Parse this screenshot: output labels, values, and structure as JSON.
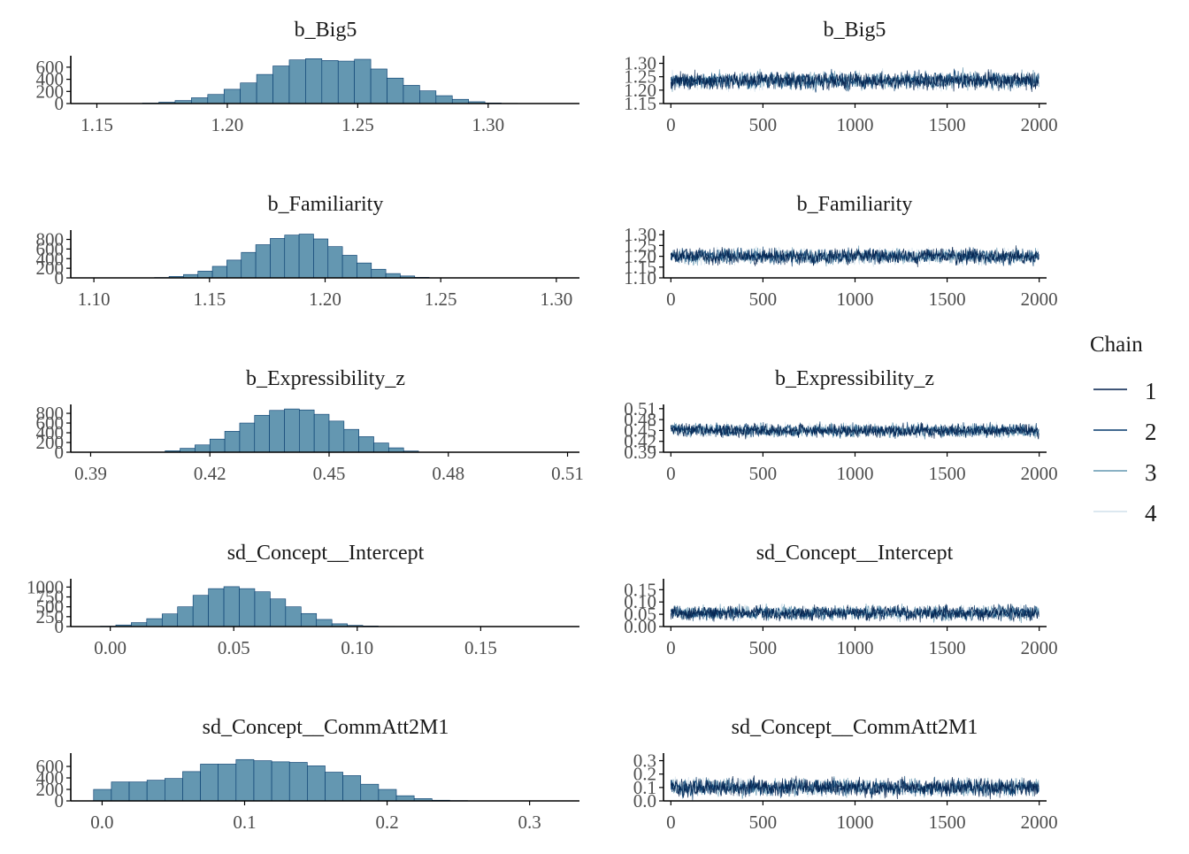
{
  "legend": {
    "title": "Chain",
    "chains": [
      {
        "label": "1",
        "color": "#011f4b"
      },
      {
        "label": "2",
        "color": "#03396c"
      },
      {
        "label": "3",
        "color": "#6497b1"
      },
      {
        "label": "4",
        "color": "#d1e1ec"
      }
    ]
  },
  "colors": {
    "hist_fill": "#6497b1",
    "hist_stroke": "#03396c",
    "axis": "#000000"
  },
  "chart_data": [
    {
      "type": "bar",
      "param": "b_Big5",
      "title": "b_Big5",
      "xlim": [
        1.14,
        1.335
      ],
      "ylim": [
        0,
        730
      ],
      "xticks": [
        {
          "v": 1.15,
          "label": "1.15"
        },
        {
          "v": 1.2,
          "label": "1.20"
        },
        {
          "v": 1.25,
          "label": "1.25"
        },
        {
          "v": 1.3,
          "label": "1.30"
        }
      ],
      "yticks": [
        {
          "v": 0,
          "label": "0"
        },
        {
          "v": 200,
          "label": "200"
        },
        {
          "v": 400,
          "label": "400"
        },
        {
          "v": 600,
          "label": "600"
        }
      ],
      "bin_start": 1.155,
      "bin_width": 0.00625,
      "counts": [
        1,
        3,
        8,
        22,
        50,
        95,
        150,
        235,
        340,
        480,
        620,
        720,
        740,
        710,
        700,
        730,
        570,
        420,
        300,
        210,
        130,
        70,
        30,
        10,
        4,
        1
      ]
    },
    {
      "type": "line",
      "param": "b_Big5",
      "title": "b_Big5",
      "xlim": [
        -40,
        2040
      ],
      "ylim": [
        1.15,
        1.315
      ],
      "xticks": [
        {
          "v": 0,
          "label": "0"
        },
        {
          "v": 500,
          "label": "500"
        },
        {
          "v": 1000,
          "label": "1000"
        },
        {
          "v": 1500,
          "label": "1500"
        },
        {
          "v": 2000,
          "label": "2000"
        }
      ],
      "yticks": [
        {
          "v": 1.15,
          "label": "1.15"
        },
        {
          "v": 1.2,
          "label": "1.20"
        },
        {
          "v": 1.25,
          "label": "1.25"
        },
        {
          "v": 1.3,
          "label": "1.30"
        }
      ],
      "iterations": 2000,
      "center": 1.235,
      "spread": 0.05,
      "lo": 1.19,
      "hi": 1.3,
      "series_names": [
        "1",
        "2",
        "3",
        "4"
      ]
    },
    {
      "type": "bar",
      "param": "b_Familiarity",
      "title": "b_Familiarity",
      "xlim": [
        1.09,
        1.31
      ],
      "ylim": [
        0,
        920
      ],
      "xticks": [
        {
          "v": 1.1,
          "label": "1.10"
        },
        {
          "v": 1.15,
          "label": "1.15"
        },
        {
          "v": 1.2,
          "label": "1.20"
        },
        {
          "v": 1.25,
          "label": "1.25"
        },
        {
          "v": 1.3,
          "label": "1.30"
        }
      ],
      "yticks": [
        {
          "v": 0,
          "label": "0"
        },
        {
          "v": 200,
          "label": "200"
        },
        {
          "v": 400,
          "label": "400"
        },
        {
          "v": 600,
          "label": "600"
        },
        {
          "v": 800,
          "label": "800"
        }
      ],
      "bin_start": 1.12,
      "bin_width": 0.00625,
      "counts": [
        2,
        8,
        30,
        70,
        140,
        240,
        370,
        530,
        690,
        820,
        890,
        910,
        810,
        650,
        470,
        310,
        180,
        90,
        40,
        12,
        3
      ]
    },
    {
      "type": "line",
      "param": "b_Familiarity",
      "title": "b_Familiarity",
      "xlim": [
        -40,
        2040
      ],
      "ylim": [
        1.1,
        1.305
      ],
      "xticks": [
        {
          "v": 0,
          "label": "0"
        },
        {
          "v": 500,
          "label": "500"
        },
        {
          "v": 1000,
          "label": "1000"
        },
        {
          "v": 1500,
          "label": "1500"
        },
        {
          "v": 2000,
          "label": "2000"
        }
      ],
      "yticks": [
        {
          "v": 1.1,
          "label": "1.10"
        },
        {
          "v": 1.15,
          "label": "1.15"
        },
        {
          "v": 1.2,
          "label": "1.20"
        },
        {
          "v": 1.25,
          "label": "1.25"
        },
        {
          "v": 1.3,
          "label": "1.30"
        }
      ],
      "iterations": 2000,
      "center": 1.2,
      "spread": 0.055,
      "lo": 1.13,
      "hi": 1.29,
      "series_names": [
        "1",
        "2",
        "3",
        "4"
      ]
    },
    {
      "type": "bar",
      "param": "b_Expressibility_z",
      "title": "b_Expressibility_z",
      "xlim": [
        0.385,
        0.513
      ],
      "ylim": [
        0,
        910
      ],
      "xticks": [
        {
          "v": 0.39,
          "label": "0.39"
        },
        {
          "v": 0.42,
          "label": "0.42"
        },
        {
          "v": 0.45,
          "label": "0.45"
        },
        {
          "v": 0.48,
          "label": "0.48"
        },
        {
          "v": 0.51,
          "label": "0.51"
        }
      ],
      "yticks": [
        {
          "v": 0,
          "label": "0"
        },
        {
          "v": 200,
          "label": "200"
        },
        {
          "v": 400,
          "label": "400"
        },
        {
          "v": 600,
          "label": "600"
        },
        {
          "v": 800,
          "label": "800"
        }
      ],
      "bin_start": 0.405,
      "bin_width": 0.00375,
      "counts": [
        5,
        30,
        80,
        150,
        270,
        430,
        600,
        760,
        860,
        890,
        870,
        780,
        640,
        470,
        320,
        190,
        90,
        25
      ]
    },
    {
      "type": "line",
      "param": "b_Expressibility_z",
      "title": "b_Expressibility_z",
      "xlim": [
        -40,
        2040
      ],
      "ylim": [
        0.39,
        0.512
      ],
      "xticks": [
        {
          "v": 0,
          "label": "0"
        },
        {
          "v": 500,
          "label": "500"
        },
        {
          "v": 1000,
          "label": "1000"
        },
        {
          "v": 1500,
          "label": "1500"
        },
        {
          "v": 2000,
          "label": "2000"
        }
      ],
      "yticks": [
        {
          "v": 0.39,
          "label": "0.39"
        },
        {
          "v": 0.42,
          "label": "0.42"
        },
        {
          "v": 0.45,
          "label": "0.45"
        },
        {
          "v": 0.48,
          "label": "0.48"
        },
        {
          "v": 0.51,
          "label": "0.51"
        }
      ],
      "iterations": 2000,
      "center": 0.45,
      "spread": 0.028,
      "lo": 0.41,
      "hi": 0.5,
      "series_names": [
        "1",
        "2",
        "3",
        "4"
      ]
    },
    {
      "type": "bar",
      "param": "sd_Concept__Intercept",
      "title": "sd_Concept__Intercept",
      "xlim": [
        -0.016,
        0.19
      ],
      "ylim": [
        0,
        1120
      ],
      "xticks": [
        {
          "v": 0.0,
          "label": "0.00"
        },
        {
          "v": 0.05,
          "label": "0.05"
        },
        {
          "v": 0.1,
          "label": "0.10"
        },
        {
          "v": 0.15,
          "label": "0.15"
        }
      ],
      "yticks": [
        {
          "v": 0,
          "label": "0"
        },
        {
          "v": 250,
          "label": "250"
        },
        {
          "v": 500,
          "label": "500"
        },
        {
          "v": 750,
          "label": "750"
        },
        {
          "v": 1000,
          "label": "1000"
        }
      ],
      "bin_start": -0.004,
      "bin_width": 0.00625,
      "counts": [
        10,
        40,
        100,
        200,
        320,
        500,
        790,
        960,
        1010,
        960,
        880,
        700,
        500,
        330,
        180,
        70,
        30,
        15,
        5
      ]
    },
    {
      "type": "line",
      "param": "sd_Concept__Intercept",
      "title": "sd_Concept__Intercept",
      "xlim": [
        -40,
        2040
      ],
      "ylim": [
        0.0,
        0.18
      ],
      "xticks": [
        {
          "v": 0,
          "label": "0"
        },
        {
          "v": 500,
          "label": "500"
        },
        {
          "v": 1000,
          "label": "1000"
        },
        {
          "v": 1500,
          "label": "1500"
        },
        {
          "v": 2000,
          "label": "2000"
        }
      ],
      "yticks": [
        {
          "v": 0.0,
          "label": "0.00"
        },
        {
          "v": 0.05,
          "label": "0.05"
        },
        {
          "v": 0.1,
          "label": "0.10"
        },
        {
          "v": 0.15,
          "label": "0.15"
        }
      ],
      "iterations": 2000,
      "center": 0.055,
      "spread": 0.045,
      "lo": 0.0,
      "hi": 0.16,
      "series_names": [
        "1",
        "2",
        "3",
        "4"
      ]
    },
    {
      "type": "bar",
      "param": "sd_Concept__CommAtt2M1",
      "title": "sd_Concept__CommAtt2M1",
      "xlim": [
        -0.022,
        0.335
      ],
      "ylim": [
        0,
        770
      ],
      "xticks": [
        {
          "v": 0.0,
          "label": "0.0"
        },
        {
          "v": 0.1,
          "label": "0.1"
        },
        {
          "v": 0.2,
          "label": "0.2"
        },
        {
          "v": 0.3,
          "label": "0.3"
        }
      ],
      "yticks": [
        {
          "v": 0,
          "label": "0"
        },
        {
          "v": 200,
          "label": "200"
        },
        {
          "v": 400,
          "label": "400"
        },
        {
          "v": 600,
          "label": "600"
        }
      ],
      "bin_start": -0.006,
      "bin_width": 0.0125,
      "counts": [
        200,
        330,
        330,
        360,
        390,
        510,
        640,
        640,
        720,
        700,
        680,
        670,
        610,
        500,
        440,
        290,
        200,
        90,
        40,
        12,
        6,
        2
      ]
    },
    {
      "type": "line",
      "param": "sd_Concept__CommAtt2M1",
      "title": "sd_Concept__CommAtt2M1",
      "xlim": [
        -40,
        2040
      ],
      "ylim": [
        0.0,
        0.33
      ],
      "xticks": [
        {
          "v": 0,
          "label": "0"
        },
        {
          "v": 500,
          "label": "500"
        },
        {
          "v": 1000,
          "label": "1000"
        },
        {
          "v": 1500,
          "label": "1500"
        },
        {
          "v": 2000,
          "label": "2000"
        }
      ],
      "yticks": [
        {
          "v": 0.0,
          "label": "0.0"
        },
        {
          "v": 0.1,
          "label": "0.1"
        },
        {
          "v": 0.2,
          "label": "0.2"
        },
        {
          "v": 0.3,
          "label": "0.3"
        }
      ],
      "iterations": 2000,
      "center": 0.1,
      "spread": 0.1,
      "lo": 0.0,
      "hi": 0.3,
      "series_names": [
        "1",
        "2",
        "3",
        "4"
      ]
    }
  ]
}
